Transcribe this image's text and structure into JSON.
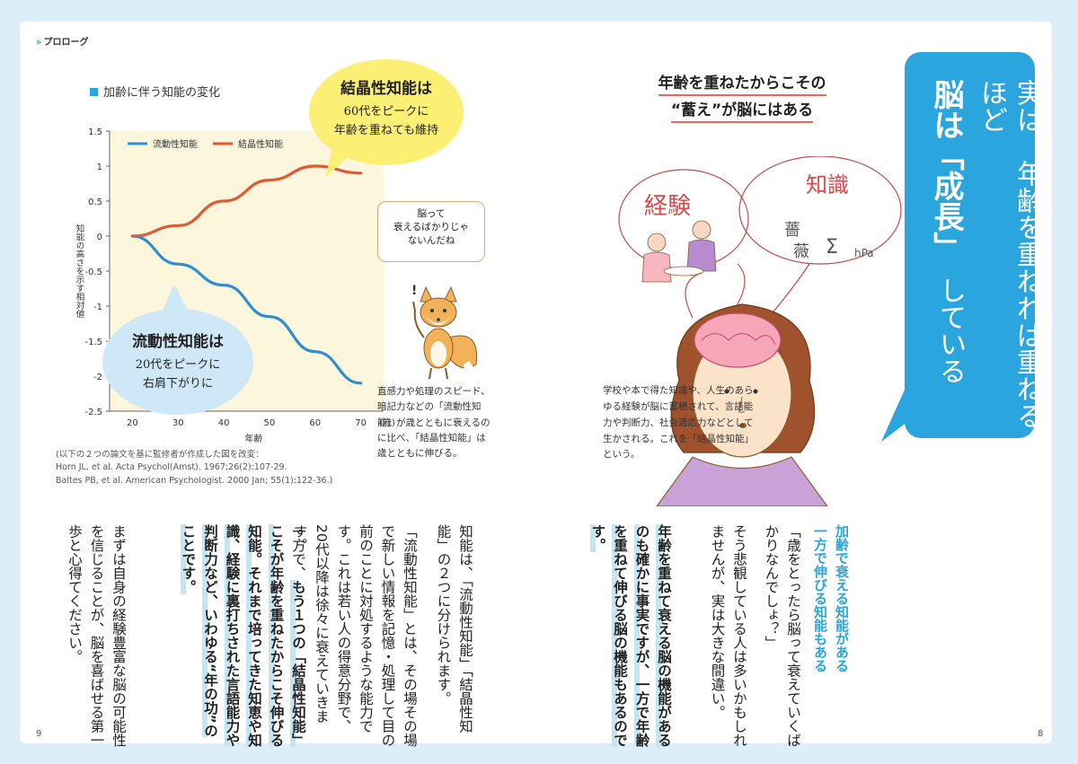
{
  "left": {
    "section_tag": "プロローグ",
    "chart_title": "加齢に伴う知能の変化",
    "callout_top_line1": "結晶性知能は",
    "callout_top_line2": "60代をピークに",
    "callout_top_line3": "年齢を重ねても維持",
    "callout_bottom_line1": "流動性知能は",
    "callout_bottom_line2": "20代をピークに",
    "callout_bottom_line3": "右肩下がりに",
    "fox_bubble": "脳って\n衰えるばかりじゃ\nないんだね",
    "fox_text": "直感力や処理のスピード、暗記力などの「流動性知能」が歳とともに衰えるのに比べ、「結晶性知能」は歳とともに伸びる。",
    "caption_line1": "(以下の２つの論文を基に監修者が作成した図を改変：",
    "caption_line2": "Horn JL, et al. Acta Psychol(Amst). 1967;26(2):107-29.",
    "caption_line3": "Baltes PB, et al. American Psychologist. 2000 Jan; 55(1):122-36.)",
    "body_col1": "知能は、「流動性知能」「結晶性知能」の２つに分けられます。",
    "body_col2": "「流動性知能」とは、その場その場で新しい情報を記憶・処理して目の前のことに対処するような能力です。これは若い人の得意分野で、20代以降は徐々に衰えていきます。",
    "body_col3a": "一方で、",
    "body_col3b": "もう１つの「結晶性知能」こそが年齢を重ねたからこそ伸びる知能。それまで培ってきた知恵や知識、経験に裏打ちされた言語能力や判断力など、いわゆる“年の功”のことです。",
    "body_col4": "まずは自身の経験豊富な脳の可能性を信じることが、脳を喜ばせる第一歩と心得てください。",
    "page_number": "9"
  },
  "right": {
    "heading_line1": "年齢を重ねたからこその",
    "heading_line2": "“蓄え”が脳にはある",
    "label_experience": "経験",
    "label_knowledge": "知識",
    "school_text": "学校や本で得た知識や、人生のあらゆる経験が脳に蓄積されて、言語能力や判断力、社会適応力などとして生かされる。これを「結晶性知能」という。",
    "title_line1": "実は、年齢を重ねれば重ねるほど",
    "title_bold": "脳は「成長」",
    "title_tail": "している",
    "sub_heading_line1": "加齢で衰える知能がある",
    "sub_heading_line2": "一方で伸びる知能もある",
    "body_col1": "「歳をとったら脳って衰えていくばかりなんでしょ？」",
    "body_col2": "そう悲観している人は多いかもしれませんが、実は大きな間違い。",
    "body_col3": "年齢を重ねて衰える脳の機能があるのも確かに事実ですが、一方で年齢を重ねて伸びる脳の機能もあるのです。",
    "page_number": "8"
  },
  "chart_data": {
    "type": "line",
    "title": "",
    "xlabel": "年齢",
    "ylabel": "知能の高さを示す相対値",
    "x": [
      20,
      30,
      40,
      50,
      60,
      70
    ],
    "x_unit": "(歳)",
    "ylim": [
      -2.5,
      1.5
    ],
    "y_ticks": [
      1.5,
      1,
      0.5,
      0,
      -0.5,
      -1,
      -1.5,
      -2,
      -2.5
    ],
    "legend_position": "top-left",
    "series": [
      {
        "name": "流動性知能",
        "color": "#2e8fd0",
        "values": [
          0,
          -0.4,
          -0.7,
          -1.15,
          -1.65,
          -2.1
        ]
      },
      {
        "name": "結晶性知能",
        "color": "#e05a36",
        "values": [
          0,
          0.15,
          0.5,
          0.8,
          1.0,
          0.9
        ]
      }
    ]
  }
}
